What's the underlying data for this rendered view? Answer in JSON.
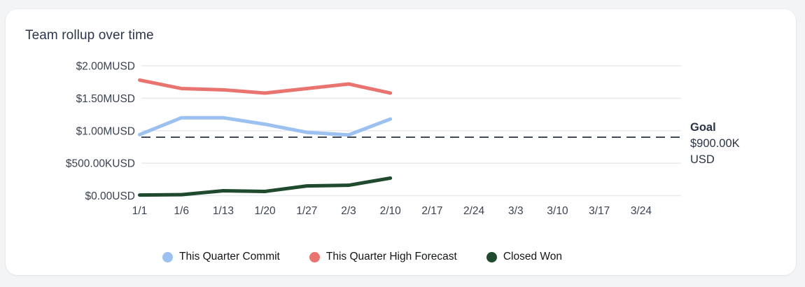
{
  "card": {
    "title": "Team rollup over time"
  },
  "colors": {
    "page_background": "#f3f4f6",
    "card_background": "#ffffff",
    "grid_line": "#e8eaed",
    "goal_line": "#434a57",
    "commit_blue": "#9cc0f0",
    "forecast_red": "#e8736f",
    "closed_won_green": "#204a2e"
  },
  "chart_data": {
    "type": "line",
    "title": "Team rollup over time",
    "xlabel": "",
    "ylabel": "",
    "grid": true,
    "legend_position": "bottom",
    "ylim": [
      0,
      2000000
    ],
    "x_categories": [
      "1/1",
      "1/6",
      "1/13",
      "1/20",
      "1/27",
      "2/3",
      "2/10",
      "2/17",
      "2/24",
      "3/3",
      "3/10",
      "3/17",
      "3/24"
    ],
    "y_ticks": [
      {
        "value": 2000000,
        "label": "$2.00MUSD"
      },
      {
        "value": 1500000,
        "label": "$1.50MUSD"
      },
      {
        "value": 1000000,
        "label": "$1.00MUSD"
      },
      {
        "value": 500000,
        "label": "$500.00KUSD"
      },
      {
        "value": 0,
        "label": "$0.00USD"
      }
    ],
    "series": [
      {
        "id": "commit",
        "name": "This Quarter Commit",
        "color": "#9cc0f0",
        "x": [
          "1/1",
          "1/6",
          "1/13",
          "1/20",
          "1/27",
          "2/3",
          "2/10"
        ],
        "values": [
          940000,
          1200000,
          1200000,
          1100000,
          975000,
          935000,
          1180000
        ]
      },
      {
        "id": "high_forecast",
        "name": "This Quarter High Forecast",
        "color": "#e8736f",
        "x": [
          "1/1",
          "1/6",
          "1/13",
          "1/20",
          "1/27",
          "2/3",
          "2/10"
        ],
        "values": [
          1780000,
          1650000,
          1630000,
          1580000,
          1650000,
          1720000,
          1580000
        ]
      },
      {
        "id": "closed_won",
        "name": "Closed Won",
        "color": "#204a2e",
        "x": [
          "1/1",
          "1/6",
          "1/13",
          "1/20",
          "1/27",
          "2/3",
          "2/10"
        ],
        "values": [
          10000,
          15000,
          75000,
          65000,
          150000,
          160000,
          270000
        ]
      }
    ],
    "goal": {
      "label": "Goal",
      "value": 900000,
      "value_label": "$900.00K",
      "currency_label": "USD"
    }
  }
}
